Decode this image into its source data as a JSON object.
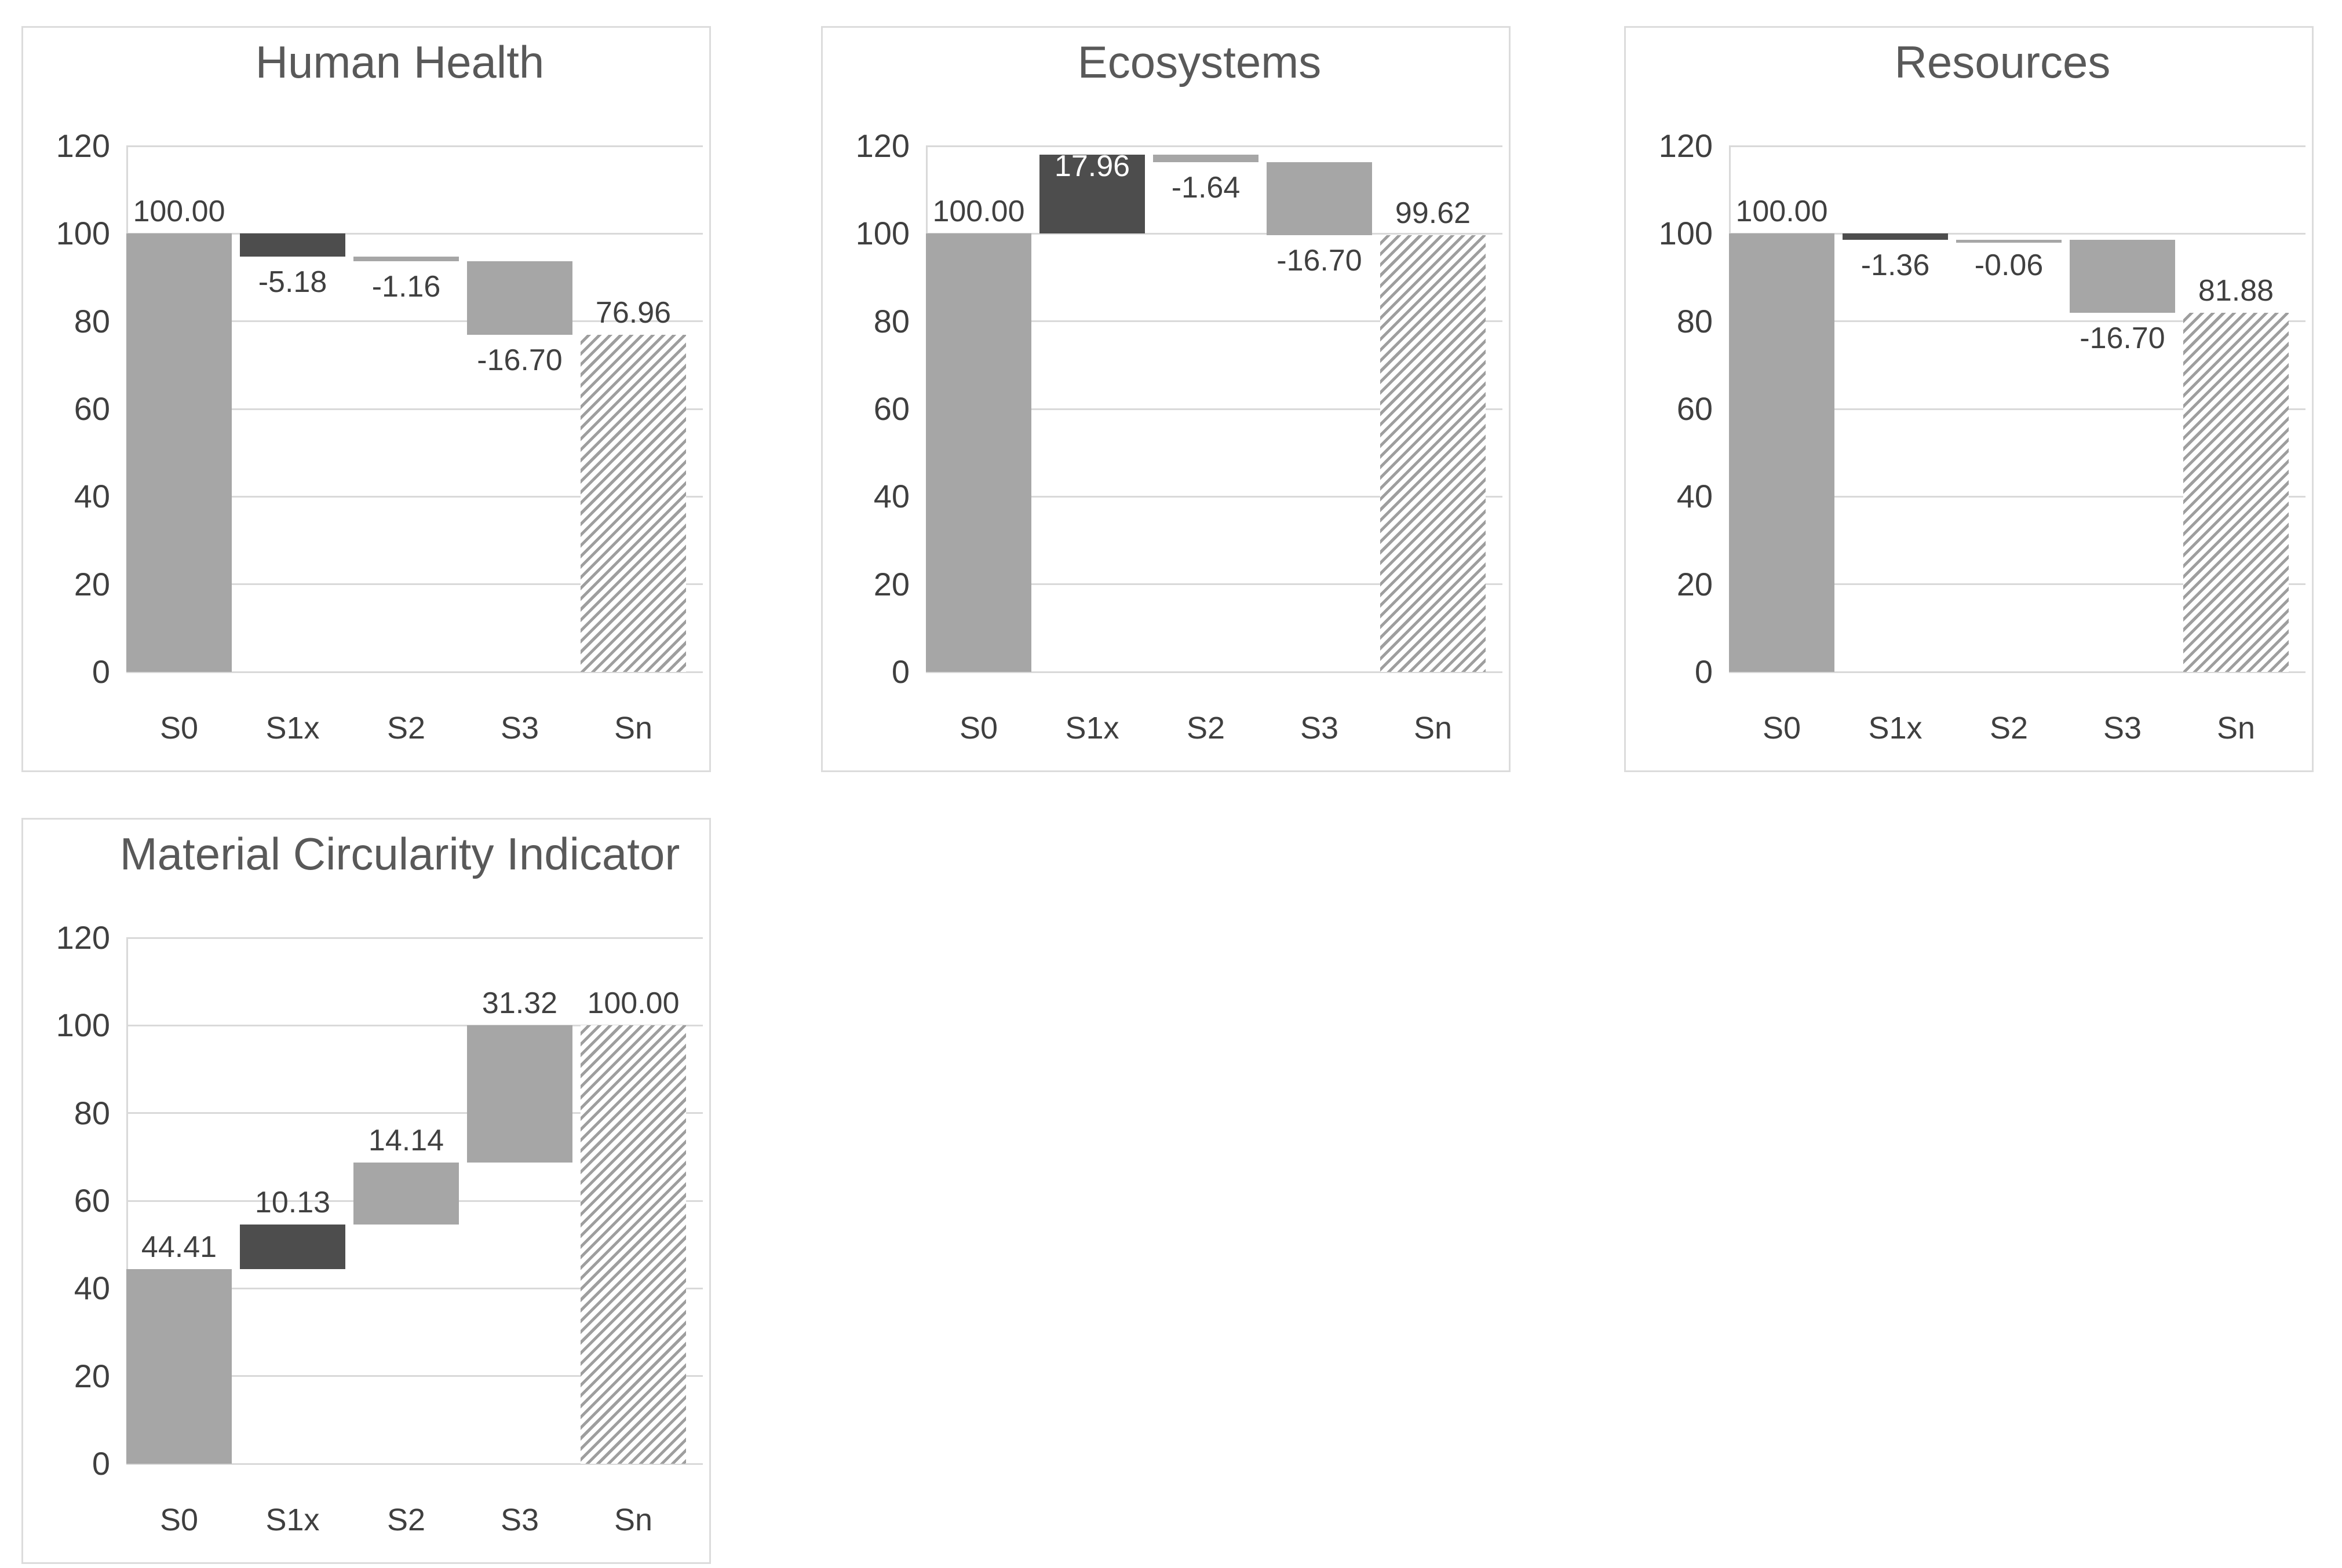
{
  "page": {
    "background": "#ffffff",
    "panel_border_color": "#dcdcdc"
  },
  "palette": {
    "mid_gray_fill": "#a6a6a6",
    "dark_gray_fill": "#4d4d4d",
    "hatch_stripe": "#9e9e9e",
    "gridline": "#d9d9d9",
    "title_text": "#595959",
    "axis_text": "#3f3f3f",
    "label_text": "#404040",
    "inside_label_text": "#ffffff"
  },
  "axis": {
    "ymin": 0,
    "ymax": 120,
    "ystep": 20,
    "y_tick_labels": [
      "120",
      "100",
      "80",
      "60",
      "40",
      "20",
      "0"
    ],
    "grid": true
  },
  "chart_data": [
    {
      "type": "bar",
      "subtype": "waterfall",
      "title": "Human Health",
      "categories": [
        "S0",
        "S1x",
        "S2",
        "S3",
        "Sn"
      ],
      "ylim": [
        0,
        120
      ],
      "ytick_step": 20,
      "grid": true,
      "bars": [
        {
          "category": "S0",
          "kind": "base",
          "value": 100.0,
          "label": "100.00",
          "color_key": "mid",
          "label_inside": false
        },
        {
          "category": "S1x",
          "kind": "delta",
          "value": -5.18,
          "label": "-5.18",
          "color_key": "dark",
          "label_inside": false
        },
        {
          "category": "S2",
          "kind": "delta",
          "value": -1.16,
          "label": "-1.16",
          "color_key": "mid",
          "label_inside": false
        },
        {
          "category": "S3",
          "kind": "delta",
          "value": -16.7,
          "label": "-16.70",
          "color_key": "mid",
          "label_inside": false
        },
        {
          "category": "Sn",
          "kind": "total",
          "value": 76.96,
          "label": "76.96",
          "color_key": "hatch",
          "label_inside": false
        }
      ]
    },
    {
      "type": "bar",
      "subtype": "waterfall",
      "title": "Ecosystems",
      "categories": [
        "S0",
        "S1x",
        "S2",
        "S3",
        "Sn"
      ],
      "ylim": [
        0,
        120
      ],
      "ytick_step": 20,
      "grid": true,
      "bars": [
        {
          "category": "S0",
          "kind": "base",
          "value": 100.0,
          "label": "100.00",
          "color_key": "mid",
          "label_inside": false
        },
        {
          "category": "S1x",
          "kind": "delta",
          "value": 17.96,
          "label": "17.96",
          "color_key": "dark",
          "label_inside": true
        },
        {
          "category": "S2",
          "kind": "delta",
          "value": -1.64,
          "label": "-1.64",
          "color_key": "mid",
          "label_inside": false
        },
        {
          "category": "S3",
          "kind": "delta",
          "value": -16.7,
          "label": "-16.70",
          "color_key": "mid",
          "label_inside": false
        },
        {
          "category": "Sn",
          "kind": "total",
          "value": 99.62,
          "label": "99.62",
          "color_key": "hatch",
          "label_inside": false
        }
      ]
    },
    {
      "type": "bar",
      "subtype": "waterfall",
      "title": "Resources",
      "categories": [
        "S0",
        "S1x",
        "S2",
        "S3",
        "Sn"
      ],
      "ylim": [
        0,
        120
      ],
      "ytick_step": 20,
      "grid": true,
      "bars": [
        {
          "category": "S0",
          "kind": "base",
          "value": 100.0,
          "label": "100.00",
          "color_key": "mid",
          "label_inside": false
        },
        {
          "category": "S1x",
          "kind": "delta",
          "value": -1.36,
          "label": "-1.36",
          "color_key": "dark",
          "label_inside": false
        },
        {
          "category": "S2",
          "kind": "delta",
          "value": -0.06,
          "label": "-0.06",
          "color_key": "mid",
          "label_inside": false
        },
        {
          "category": "S3",
          "kind": "delta",
          "value": -16.7,
          "label": "-16.70",
          "color_key": "mid",
          "label_inside": false
        },
        {
          "category": "Sn",
          "kind": "total",
          "value": 81.88,
          "label": "81.88",
          "color_key": "hatch",
          "label_inside": false
        }
      ]
    },
    {
      "type": "bar",
      "subtype": "waterfall",
      "title": "Material Circularity Indicator",
      "categories": [
        "S0",
        "S1x",
        "S2",
        "S3",
        "Sn"
      ],
      "ylim": [
        0,
        120
      ],
      "ytick_step": 20,
      "grid": true,
      "bars": [
        {
          "category": "S0",
          "kind": "base",
          "value": 44.41,
          "label": "44.41",
          "color_key": "mid",
          "label_inside": false
        },
        {
          "category": "S1x",
          "kind": "delta",
          "value": 10.13,
          "label": "10.13",
          "color_key": "dark",
          "label_inside": false
        },
        {
          "category": "S2",
          "kind": "delta",
          "value": 14.14,
          "label": "14.14",
          "color_key": "mid",
          "label_inside": false
        },
        {
          "category": "S3",
          "kind": "delta",
          "value": 31.32,
          "label": "31.32",
          "color_key": "mid",
          "label_inside": false
        },
        {
          "category": "Sn",
          "kind": "total",
          "value": 100.0,
          "label": "100.00",
          "color_key": "hatch",
          "label_inside": false
        }
      ]
    }
  ]
}
